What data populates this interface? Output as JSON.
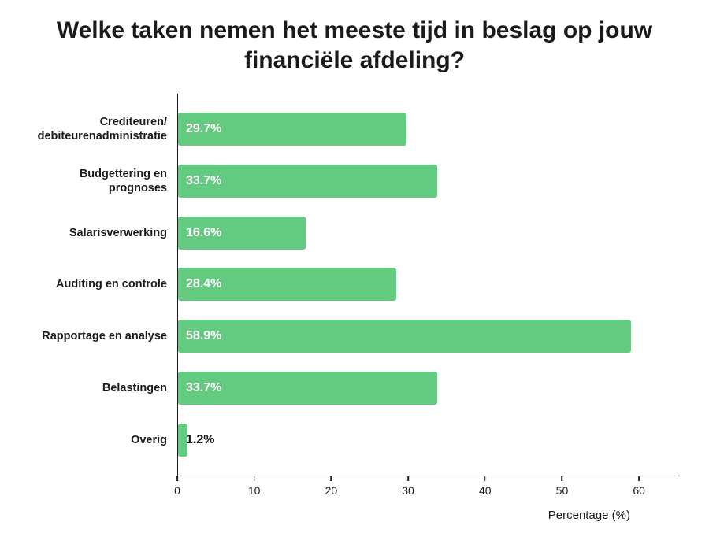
{
  "chart": {
    "type": "bar",
    "orientation": "horizontal",
    "title": "Welke taken nemen het meeste tijd in beslag op jouw financiële afdeling?",
    "title_fontsize": 30,
    "title_color": "#1a1a1a",
    "background_color": "#ffffff",
    "xlabel": "Percentage (%)",
    "xlabel_fontsize": 15,
    "xlim": [
      0,
      65
    ],
    "xtick_step": 10,
    "xticks": [
      0,
      10,
      20,
      30,
      40,
      50,
      60
    ],
    "bar_color": "#63cb80",
    "bar_border_radius": 3,
    "axis_color": "#1a1a1a",
    "category_label_fontsize": 14.5,
    "category_label_color": "#1a1a1a",
    "value_label_fontsize": 16,
    "value_label_color_light": "#ffffff",
    "value_label_color_dark": "#1a1a1a",
    "bars": [
      {
        "category": "Crediteuren/\ndebiteurenadministratie",
        "value": 29.7,
        "value_label": "29.7%",
        "value_text_color": "#ffffff"
      },
      {
        "category": "Budgettering en\nprognoses",
        "value": 33.7,
        "value_label": "33.7%",
        "value_text_color": "#ffffff"
      },
      {
        "category": "Salarisverwerking",
        "value": 16.6,
        "value_label": "16.6%",
        "value_text_color": "#ffffff"
      },
      {
        "category": "Auditing en controle",
        "value": 28.4,
        "value_label": "28.4%",
        "value_text_color": "#ffffff"
      },
      {
        "category": "Rapportage en analyse",
        "value": 58.9,
        "value_label": "58.9%",
        "value_text_color": "#ffffff"
      },
      {
        "category": "Belastingen",
        "value": 33.7,
        "value_label": "33.7%",
        "value_text_color": "#ffffff"
      },
      {
        "category": "Overig",
        "value": 1.2,
        "value_label": "1.2%",
        "value_text_color": "#1a1a1a"
      }
    ]
  }
}
